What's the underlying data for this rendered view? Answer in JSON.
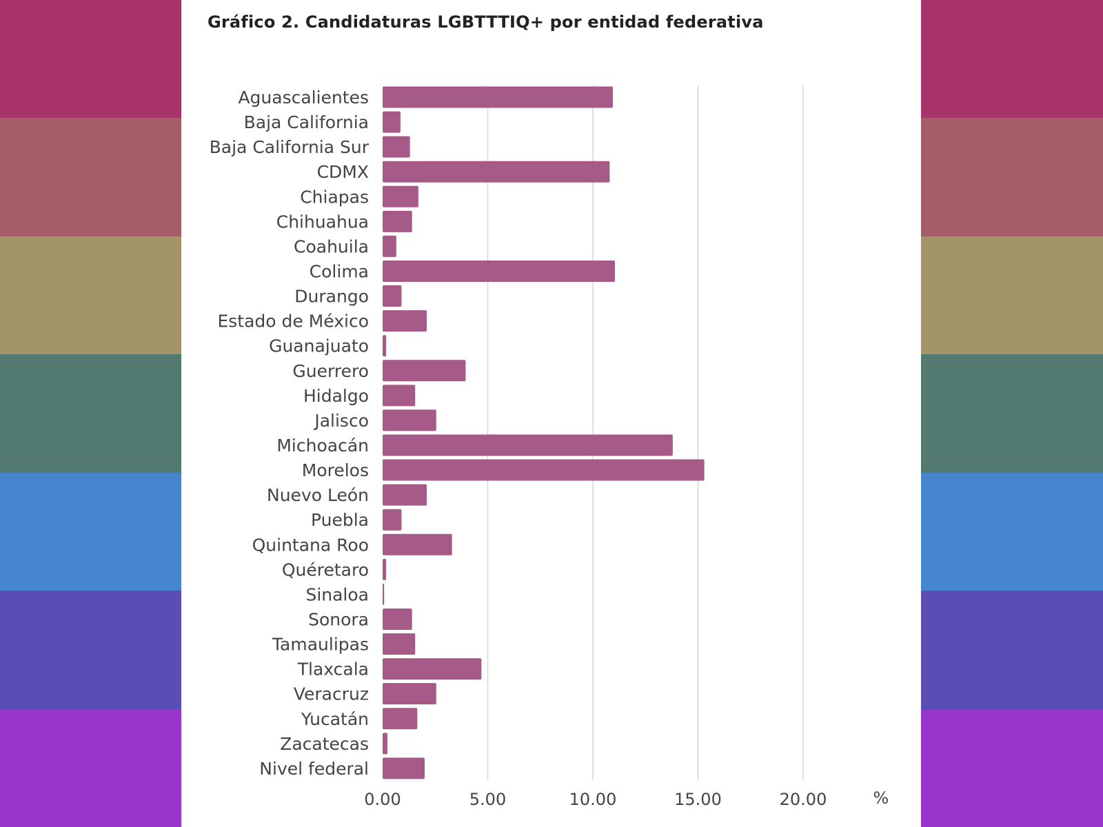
{
  "background_stripe_colors": [
    "#a8336a",
    "#a55e68",
    "#a3946a",
    "#527a70",
    "#4786cf",
    "#5a4db4",
    "#9836cb"
  ],
  "chart_data": {
    "type": "bar",
    "orientation": "horizontal",
    "title": "Gráfico 2. Candidaturas LGBTTTIQ+ por entidad federativa",
    "xlabel": "%",
    "ylabel": "",
    "xlim": [
      0,
      20
    ],
    "xticks": [
      "0.00",
      "5.00",
      "10.00",
      "15.00",
      "20.00"
    ],
    "grid": true,
    "bar_color": "#a65a88",
    "categories": [
      "Aguascalientes",
      "Baja California",
      "Baja California Sur",
      "CDMX",
      "Chiapas",
      "Chihuahua",
      "Coahuila",
      "Colima",
      "Durango",
      "Estado de México",
      "Guanajuato",
      "Guerrero",
      "Hidalgo",
      "Jalisco",
      "Michoacán",
      "Morelos",
      "Nuevo León",
      "Puebla",
      "Quintana Roo",
      "Quéretaro",
      "Sinaloa",
      "Sonora",
      "Tamaulipas",
      "Tlaxcala",
      "Veracruz",
      "Yucatán",
      "Zacatecas",
      "Nivel federal"
    ],
    "values": [
      10.95,
      0.85,
      1.3,
      10.8,
      1.7,
      1.4,
      0.65,
      11.05,
      0.9,
      2.1,
      0.17,
      3.95,
      1.55,
      2.55,
      13.8,
      15.3,
      2.1,
      0.9,
      3.3,
      0.17,
      0.07,
      1.4,
      1.55,
      4.7,
      2.55,
      1.65,
      0.23,
      2.0
    ]
  }
}
